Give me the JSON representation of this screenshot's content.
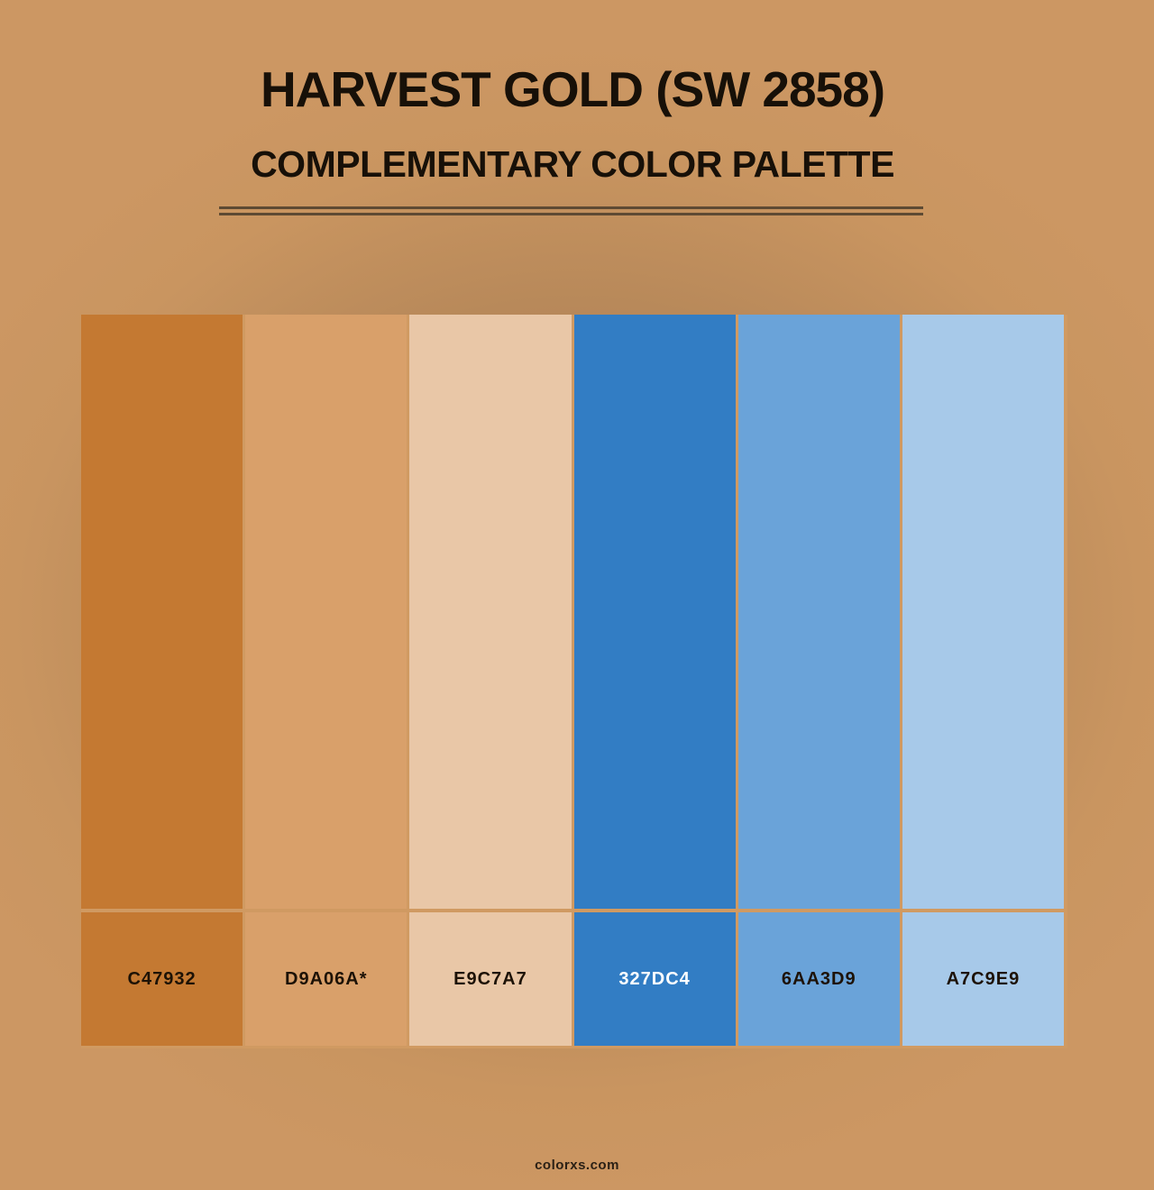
{
  "header": {
    "title": "HARVEST GOLD (SW 2858)",
    "subtitle": "COMPLEMENTARY COLOR PALETTE"
  },
  "footer": {
    "brand": "colorxs.com"
  },
  "colors": {
    "background_center": "#a2754a",
    "background_edge": "#cc9763",
    "divider": "#d09a62",
    "rule": "#5e4a33",
    "text": "#171008"
  },
  "chart_data": {
    "type": "table",
    "title": "Harvest Gold (SW 2858) — Complementary Color Palette",
    "categories": [
      "C47932",
      "D9A06A*",
      "E9C7A7",
      "327DC4",
      "6AA3D9",
      "A7C9E9"
    ],
    "swatches": [
      {
        "label": "C47932",
        "hex": "#C47932",
        "label_color": "#1d1206"
      },
      {
        "label": "D9A06A*",
        "hex": "#D9A06A",
        "label_color": "#1d1206"
      },
      {
        "label": "E9C7A7",
        "hex": "#E9C7A7",
        "label_color": "#1d1206"
      },
      {
        "label": "327DC4",
        "hex": "#327DC4",
        "label_color": "#ffffff"
      },
      {
        "label": "6AA3D9",
        "hex": "#6AA3D9",
        "label_color": "#1d1206"
      },
      {
        "label": "A7C9E9",
        "hex": "#A7C9E9",
        "label_color": "#1d1206"
      }
    ]
  }
}
